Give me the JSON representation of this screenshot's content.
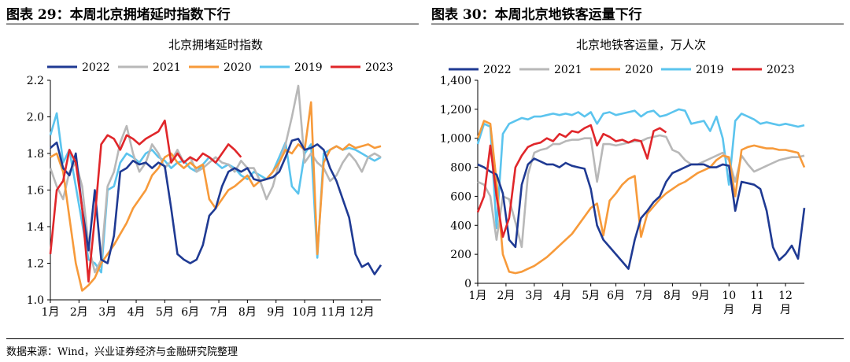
{
  "left_figure_title": "图表 29：本周北京拥堵延时指数下行",
  "right_figure_title": "图表 30：本周北京地铁客运量下行",
  "source": "数据来源：Wind，兴业证券经济与金融研究院整理",
  "chart_data": [
    {
      "type": "line",
      "title": "北京拥堵延时指数",
      "xlabel": "",
      "ylabel": "",
      "ylim": [
        1.0,
        2.2
      ],
      "yticks": [
        1.0,
        1.2,
        1.4,
        1.6,
        1.8,
        2.0,
        2.2
      ],
      "ytick_labels": [
        "1.0",
        "1.2",
        "1.4",
        "1.6",
        "1.8",
        "2.0",
        "2.2"
      ],
      "x_unit": "week-of-year (1–53)",
      "xlim": [
        1,
        53
      ],
      "xtick_labels": [
        "1月",
        "2月",
        "3月",
        "4月",
        "5月",
        "6月",
        "7月",
        "8月",
        "9月",
        "10月",
        "11月",
        "12月"
      ],
      "xtick_positions": [
        1,
        5.5,
        10,
        14.5,
        19,
        23,
        27.5,
        32,
        36.5,
        41,
        45.5,
        50
      ],
      "legend_position": "top",
      "grid": false,
      "series": [
        {
          "name": "2022",
          "color": "#1f3a93",
          "x": [
            1,
            2,
            3,
            4,
            5,
            6,
            7,
            8,
            9,
            10,
            11,
            12,
            13,
            14,
            15,
            16,
            17,
            18,
            19,
            20,
            21,
            22,
            23,
            24,
            25,
            26,
            27,
            28,
            29,
            30,
            31,
            32,
            33,
            34,
            35,
            36,
            37,
            38,
            39,
            40,
            41,
            42,
            43,
            44,
            45,
            46,
            47,
            48,
            49,
            50,
            51,
            52,
            53
          ],
          "values": [
            1.83,
            1.86,
            1.72,
            1.68,
            1.8,
            1.5,
            1.27,
            1.6,
            1.22,
            1.2,
            1.35,
            1.7,
            1.72,
            1.76,
            1.74,
            1.75,
            1.72,
            1.75,
            1.73,
            1.5,
            1.25,
            1.22,
            1.2,
            1.22,
            1.3,
            1.46,
            1.5,
            1.62,
            1.7,
            1.72,
            1.7,
            1.72,
            1.66,
            1.65,
            1.66,
            1.67,
            1.7,
            1.78,
            1.87,
            1.88,
            1.82,
            1.83,
            1.85,
            1.82,
            1.72,
            1.65,
            1.55,
            1.45,
            1.25,
            1.18,
            1.2,
            1.14,
            1.19
          ]
        },
        {
          "name": "2021",
          "color": "#b8b8b8",
          "x": [
            1,
            2,
            3,
            4,
            5,
            6,
            7,
            8,
            9,
            10,
            11,
            12,
            13,
            14,
            15,
            16,
            17,
            18,
            19,
            20,
            21,
            22,
            23,
            24,
            25,
            26,
            27,
            28,
            29,
            30,
            31,
            32,
            33,
            34,
            35,
            36,
            37,
            38,
            39,
            40,
            41,
            42,
            43,
            44,
            45,
            46,
            47,
            48,
            49,
            50,
            51,
            52,
            53
          ],
          "values": [
            1.72,
            1.62,
            1.55,
            1.7,
            1.75,
            1.62,
            1.3,
            1.15,
            1.22,
            1.62,
            1.7,
            1.86,
            1.95,
            1.8,
            1.7,
            1.75,
            1.85,
            1.8,
            1.72,
            1.76,
            1.82,
            1.75,
            1.78,
            1.7,
            1.72,
            1.75,
            1.78,
            1.75,
            1.74,
            1.7,
            1.76,
            1.72,
            1.72,
            1.65,
            1.55,
            1.62,
            1.75,
            1.85,
            2.0,
            2.17,
            1.75,
            1.8,
            1.75,
            1.72,
            1.65,
            1.68,
            1.75,
            1.8,
            1.76,
            1.7,
            1.78,
            1.8,
            1.78
          ]
        },
        {
          "name": "2020",
          "color": "#f79a3a",
          "x": [
            1,
            2,
            3,
            4,
            5,
            6,
            7,
            8,
            9,
            10,
            11,
            12,
            13,
            14,
            15,
            16,
            17,
            18,
            19,
            20,
            21,
            22,
            23,
            24,
            25,
            26,
            27,
            28,
            29,
            30,
            31,
            32,
            33,
            34,
            35,
            36,
            37,
            38,
            39,
            40,
            41,
            42,
            43,
            44,
            45,
            46,
            47,
            48,
            49,
            50,
            51,
            52,
            53
          ],
          "values": [
            1.78,
            1.8,
            1.7,
            1.45,
            1.2,
            1.05,
            1.08,
            1.12,
            1.2,
            1.25,
            1.3,
            1.36,
            1.42,
            1.5,
            1.55,
            1.6,
            1.68,
            1.72,
            1.78,
            1.8,
            1.75,
            1.72,
            1.75,
            1.72,
            1.74,
            1.55,
            1.5,
            1.55,
            1.6,
            1.62,
            1.65,
            1.68,
            1.62,
            1.65,
            1.66,
            1.7,
            1.75,
            1.82,
            1.8,
            1.85,
            1.82,
            2.08,
            1.25,
            1.75,
            1.82,
            1.84,
            1.82,
            1.85,
            1.83,
            1.84,
            1.85,
            1.83,
            1.84
          ]
        },
        {
          "name": "2019",
          "color": "#5bc4ee",
          "x": [
            1,
            2,
            3,
            4,
            5,
            6,
            7,
            8,
            9,
            10,
            11,
            12,
            13,
            14,
            15,
            16,
            17,
            18,
            19,
            20,
            21,
            22,
            23,
            24,
            25,
            26,
            27,
            28,
            29,
            30,
            31,
            32,
            33,
            34,
            35,
            36,
            37,
            38,
            39,
            40,
            41,
            42,
            43,
            44,
            45,
            46,
            47,
            48,
            49,
            50,
            51,
            52,
            53
          ],
          "values": [
            1.9,
            2.02,
            1.75,
            1.82,
            1.62,
            1.42,
            1.22,
            1.2,
            1.15,
            1.6,
            1.62,
            1.75,
            1.8,
            1.78,
            1.75,
            1.8,
            1.82,
            1.78,
            1.76,
            1.72,
            1.75,
            1.76,
            1.72,
            1.7,
            1.74,
            1.78,
            1.75,
            1.72,
            1.74,
            1.72,
            1.68,
            1.66,
            1.7,
            1.68,
            1.66,
            1.7,
            1.78,
            1.86,
            1.62,
            1.58,
            1.8,
            1.85,
            1.23,
            1.8,
            1.82,
            1.84,
            1.82,
            1.83,
            1.82,
            1.8,
            1.78,
            1.76,
            1.78
          ]
        },
        {
          "name": "2023",
          "color": "#e0262a",
          "x": [
            1,
            2,
            3,
            4,
            5,
            6,
            7,
            8,
            9,
            10,
            11,
            12,
            13,
            14,
            15,
            16,
            17,
            18,
            19,
            20,
            21,
            22,
            23,
            24,
            25,
            26,
            27,
            28,
            29,
            30,
            31
          ],
          "values": [
            1.25,
            1.6,
            1.65,
            1.82,
            1.75,
            1.5,
            1.1,
            1.45,
            1.85,
            1.9,
            1.88,
            1.82,
            1.9,
            1.88,
            1.85,
            1.88,
            1.9,
            1.92,
            1.98,
            1.75,
            1.8,
            1.75,
            1.78,
            1.76,
            1.8,
            1.78,
            1.75,
            1.8,
            1.85,
            1.82,
            1.78
          ]
        }
      ]
    },
    {
      "type": "line",
      "title": "北京地铁客运量，万人次",
      "xlabel": "",
      "ylabel": "",
      "ylim": [
        0,
        1400
      ],
      "yticks": [
        0,
        200,
        400,
        600,
        800,
        1000,
        1200,
        1400
      ],
      "ytick_labels": [
        "0",
        "200",
        "400",
        "600",
        "800",
        "1,000",
        "1,200",
        "1,400"
      ],
      "x_unit": "week-of-year (1–53)",
      "xlim": [
        1,
        53
      ],
      "xtick_labels": [
        "1月",
        "2月",
        "3月",
        "4月",
        "5月",
        "6月",
        "7月",
        "8月",
        "9月",
        "10\n月",
        "11\n月",
        "12\n月"
      ],
      "xtick_positions": [
        1,
        5.5,
        10,
        14.5,
        19,
        23,
        27.5,
        32,
        36.5,
        41,
        45.5,
        50
      ],
      "legend_position": "top",
      "grid": false,
      "series": [
        {
          "name": "2022",
          "color": "#1f3a93",
          "x": [
            1,
            2,
            3,
            4,
            5,
            6,
            7,
            8,
            9,
            10,
            11,
            12,
            13,
            14,
            15,
            16,
            17,
            18,
            19,
            20,
            21,
            22,
            23,
            24,
            25,
            26,
            27,
            28,
            29,
            30,
            31,
            32,
            33,
            34,
            35,
            36,
            37,
            38,
            39,
            40,
            41,
            42,
            43,
            44,
            45,
            46,
            47,
            48,
            49,
            50,
            51,
            52,
            53
          ],
          "values": [
            820,
            800,
            770,
            750,
            620,
            300,
            250,
            680,
            820,
            860,
            840,
            820,
            820,
            800,
            830,
            810,
            800,
            790,
            650,
            400,
            300,
            250,
            200,
            150,
            100,
            300,
            450,
            500,
            560,
            600,
            700,
            760,
            780,
            800,
            820,
            820,
            820,
            800,
            800,
            820,
            810,
            500,
            700,
            690,
            680,
            650,
            500,
            250,
            160,
            200,
            260,
            170,
            520
          ]
        },
        {
          "name": "2021",
          "color": "#b8b8b8",
          "x": [
            1,
            2,
            3,
            4,
            5,
            6,
            7,
            8,
            9,
            10,
            11,
            12,
            13,
            14,
            15,
            16,
            17,
            18,
            19,
            20,
            21,
            22,
            23,
            24,
            25,
            26,
            27,
            28,
            29,
            30,
            31,
            32,
            33,
            34,
            35,
            36,
            37,
            38,
            39,
            40,
            41,
            42,
            43,
            44,
            45,
            46,
            47,
            48,
            49,
            50,
            51,
            52,
            53
          ],
          "values": [
            700,
            680,
            600,
            300,
            600,
            580,
            420,
            250,
            750,
            900,
            920,
            930,
            960,
            960,
            980,
            990,
            990,
            1000,
            1000,
            700,
            960,
            960,
            950,
            960,
            970,
            980,
            980,
            1000,
            1010,
            1020,
            1010,
            920,
            900,
            850,
            820,
            820,
            840,
            860,
            880,
            900,
            850,
            700,
            880,
            820,
            770,
            790,
            810,
            830,
            850,
            860,
            870,
            870,
            880
          ]
        },
        {
          "name": "2020",
          "color": "#f79a3a",
          "x": [
            1,
            2,
            3,
            4,
            5,
            6,
            7,
            8,
            9,
            10,
            11,
            12,
            13,
            14,
            15,
            16,
            17,
            18,
            19,
            20,
            21,
            22,
            23,
            24,
            25,
            26,
            27,
            28,
            29,
            30,
            31,
            32,
            33,
            34,
            35,
            36,
            37,
            38,
            39,
            40,
            41,
            42,
            43,
            44,
            45,
            46,
            47,
            48,
            49,
            50,
            51,
            52,
            53
          ],
          "values": [
            1000,
            1120,
            1100,
            700,
            200,
            80,
            70,
            80,
            100,
            120,
            150,
            180,
            220,
            260,
            300,
            340,
            400,
            460,
            520,
            550,
            330,
            570,
            620,
            680,
            720,
            740,
            320,
            480,
            530,
            580,
            620,
            650,
            680,
            700,
            730,
            760,
            780,
            800,
            850,
            880,
            870,
            600,
            920,
            940,
            950,
            940,
            930,
            930,
            920,
            920,
            910,
            900,
            800
          ]
        },
        {
          "name": "2019",
          "color": "#5bc4ee",
          "x": [
            1,
            2,
            3,
            4,
            5,
            6,
            7,
            8,
            9,
            10,
            11,
            12,
            13,
            14,
            15,
            16,
            17,
            18,
            19,
            20,
            21,
            22,
            23,
            24,
            25,
            26,
            27,
            28,
            29,
            30,
            31,
            32,
            33,
            34,
            35,
            36,
            37,
            38,
            39,
            40,
            41,
            42,
            43,
            44,
            45,
            46,
            47,
            48,
            49,
            50,
            51,
            52,
            53
          ],
          "values": [
            960,
            1100,
            1080,
            380,
            1030,
            1100,
            1120,
            1140,
            1130,
            1150,
            1150,
            1160,
            1170,
            1160,
            1170,
            1160,
            1180,
            1150,
            1180,
            1100,
            1170,
            1180,
            1160,
            1170,
            1180,
            1190,
            1150,
            1180,
            1190,
            1150,
            1160,
            1180,
            1200,
            1190,
            1100,
            1110,
            1120,
            1050,
            1150,
            1000,
            680,
            1120,
            1170,
            1150,
            1130,
            1100,
            1110,
            1100,
            1090,
            1100,
            1090,
            1080,
            1090
          ]
        },
        {
          "name": "2023",
          "color": "#e0262a",
          "x": [
            1,
            2,
            3,
            4,
            5,
            6,
            7,
            8,
            9,
            10,
            11,
            12,
            13,
            14,
            15,
            16,
            17,
            18,
            19,
            20,
            21,
            22,
            23,
            24,
            25,
            26,
            27,
            28,
            29,
            30,
            31
          ],
          "values": [
            490,
            600,
            950,
            600,
            320,
            450,
            800,
            880,
            940,
            960,
            970,
            1000,
            980,
            1030,
            1010,
            1050,
            1040,
            1070,
            1090,
            950,
            1030,
            1010,
            980,
            990,
            970,
            990,
            980,
            860,
            1050,
            1070,
            1040
          ]
        }
      ]
    }
  ]
}
